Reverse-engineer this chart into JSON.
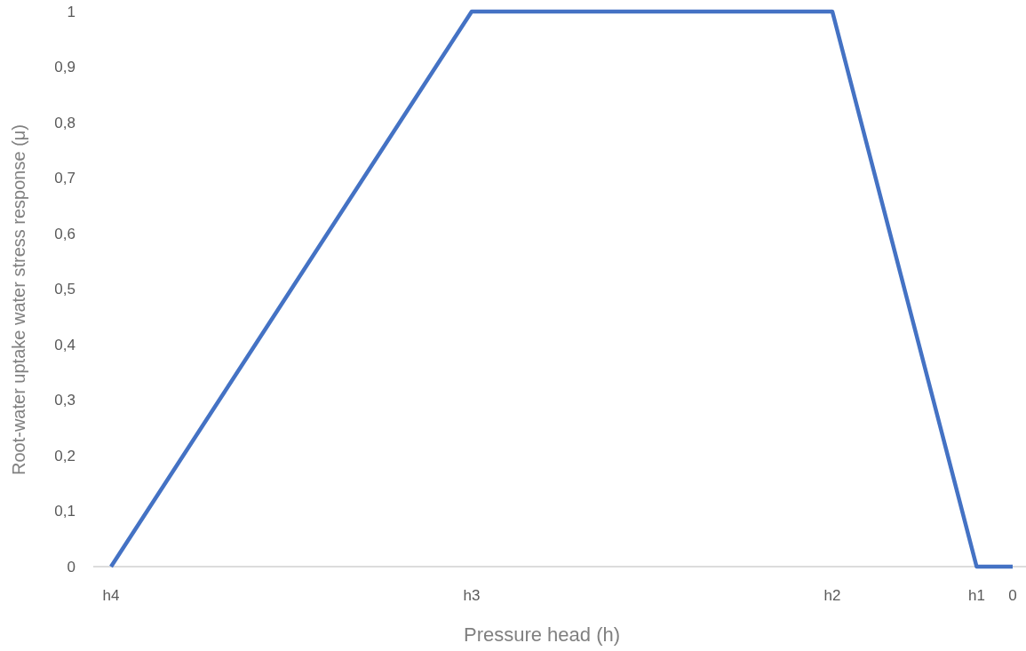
{
  "chart_data": {
    "type": "line",
    "xlabel": "Pressure head (h)",
    "ylabel": "Root-water uptake water stress response (μ)",
    "categories": [
      "h4",
      null,
      null,
      null,
      null,
      null,
      null,
      null,
      null,
      null,
      "h3",
      null,
      null,
      null,
      null,
      null,
      null,
      null,
      null,
      null,
      "h2",
      null,
      null,
      null,
      "h1",
      "0"
    ],
    "series": [
      {
        "color": "#4472c4",
        "values": [
          0,
          0.1,
          0.2,
          0.3,
          0.4,
          0.5,
          0.6,
          0.7,
          0.8,
          0.9,
          1,
          1,
          1,
          1,
          1,
          1,
          1,
          1,
          1,
          1,
          1,
          0.75,
          0.5,
          0.25,
          0,
          0
        ]
      }
    ],
    "ylim": [
      0,
      1
    ],
    "yticks": [
      0,
      {
        "value": 0.1,
        "label": "0,1"
      },
      {
        "value": 0.2,
        "label": "0,2"
      },
      {
        "value": 0.3,
        "label": "0,3"
      },
      {
        "value": 0.4,
        "label": "0,4"
      },
      {
        "value": 0.5,
        "label": "0,5"
      },
      {
        "value": 0.6,
        "label": "0,6"
      },
      {
        "value": 0.7,
        "label": "0,7"
      },
      {
        "value": 0.8,
        "label": "0,8"
      },
      {
        "value": 0.9,
        "label": "0,9"
      },
      1
    ],
    "grid": false,
    "marker": "none",
    "line_style": "solid"
  }
}
